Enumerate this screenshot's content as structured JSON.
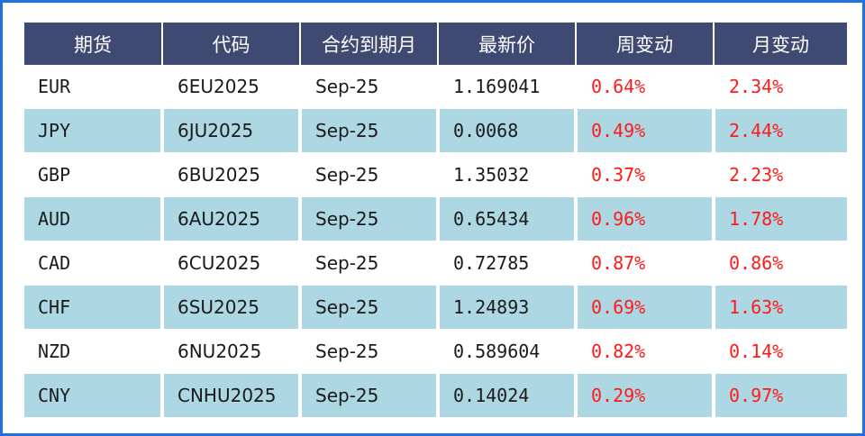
{
  "headers": [
    "期货",
    "代码",
    "合约到期月",
    "最新价",
    "周变动",
    "月变动"
  ],
  "rows": [
    {
      "future": "EUR",
      "code": "6EU2025",
      "expiry": "Sep-25",
      "last": "1.169041",
      "week": "0.64%",
      "month": "2.34%"
    },
    {
      "future": "JPY",
      "code": "6JU2025",
      "expiry": "Sep-25",
      "last": "0.0068",
      "week": "0.49%",
      "month": "2.44%"
    },
    {
      "future": "GBP",
      "code": "6BU2025",
      "expiry": "Sep-25",
      "last": "1.35032",
      "week": "0.37%",
      "month": "2.23%"
    },
    {
      "future": "AUD",
      "code": "6AU2025",
      "expiry": "Sep-25",
      "last": "0.65434",
      "week": "0.96%",
      "month": "1.78%"
    },
    {
      "future": "CAD",
      "code": "6CU2025",
      "expiry": "Sep-25",
      "last": "0.72785",
      "week": "0.87%",
      "month": "0.86%"
    },
    {
      "future": "CHF",
      "code": "6SU2025",
      "expiry": "Sep-25",
      "last": "1.24893",
      "week": "0.69%",
      "month": "1.63%"
    },
    {
      "future": "NZD",
      "code": "6NU2025",
      "expiry": "Sep-25",
      "last": "0.589604",
      "week": "0.82%",
      "month": "0.14%"
    },
    {
      "future": "CNY",
      "code": "CNHU2025",
      "expiry": "Sep-25",
      "last": "0.14024",
      "week": "0.29%",
      "month": "0.97%"
    }
  ],
  "colors": {
    "header_bg": "#3f4a72",
    "stripe_bg": "#add8e3",
    "positive_change": "#ff1a1a",
    "frame_border": "#1f6fe6"
  }
}
